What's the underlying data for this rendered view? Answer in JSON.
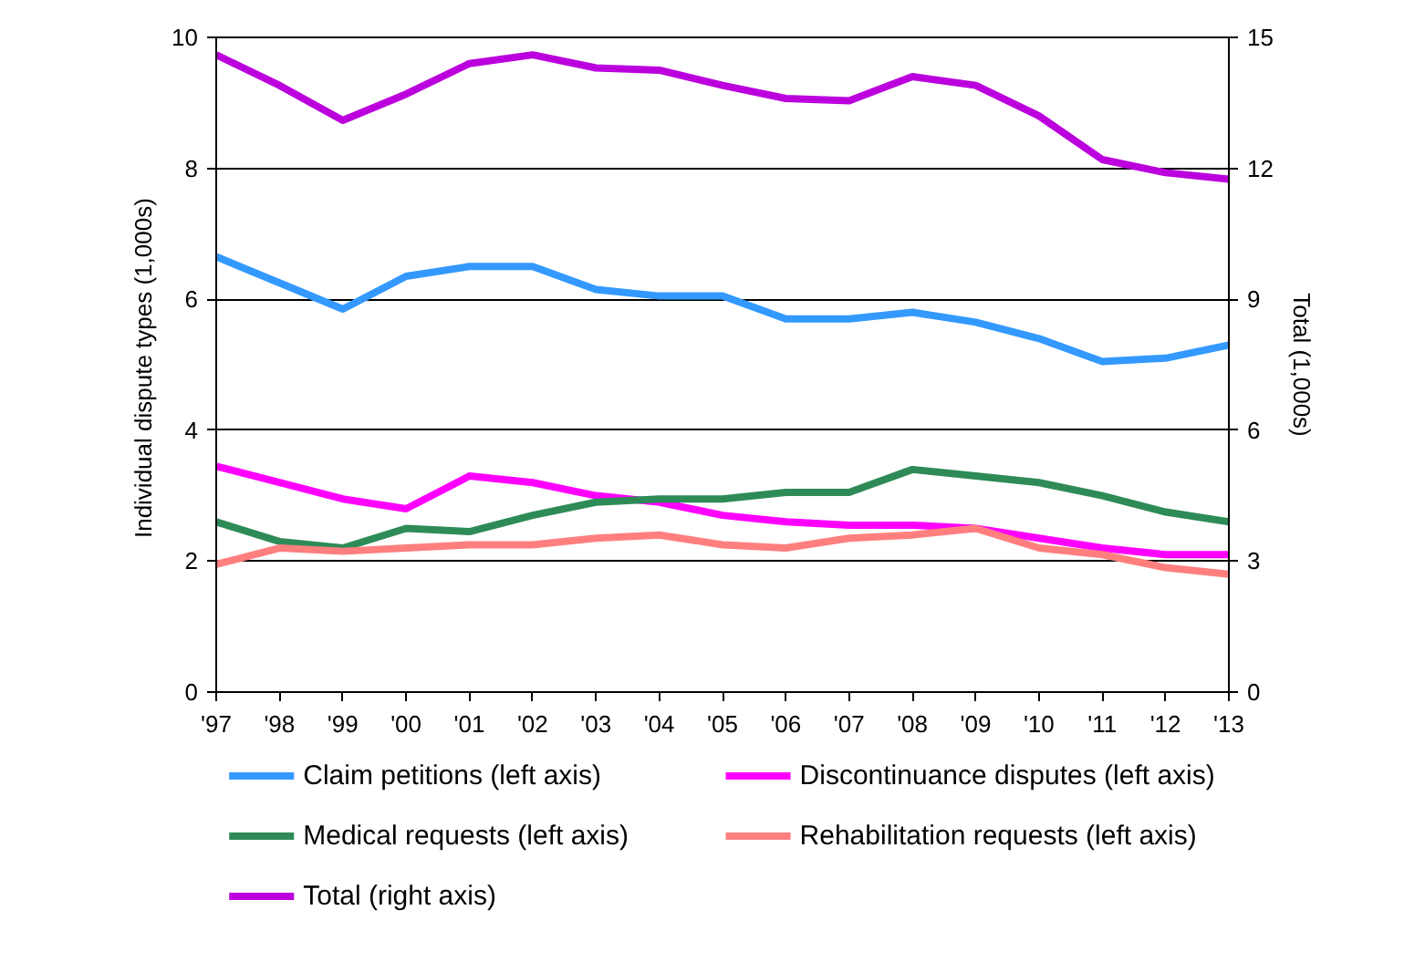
{
  "chart_data": {
    "type": "line",
    "categories": [
      "'97",
      "'98",
      "'99",
      "'00",
      "'01",
      "'02",
      "'03",
      "'04",
      "'05",
      "'06",
      "'07",
      "'08",
      "'09",
      "'10",
      "'11",
      "'12",
      "'13"
    ],
    "ylabel": "Individual  dispute types (1,000s)",
    "y2label": "Total (1,000s)",
    "ylim": [
      0,
      10
    ],
    "yticks": [
      0,
      2,
      4,
      6,
      8,
      10
    ],
    "y2lim": [
      0,
      15
    ],
    "y2ticks": [
      0,
      3,
      6,
      9,
      12,
      15
    ],
    "grid": "y",
    "legend": "bottom",
    "line_style": "solid",
    "marker": "none",
    "series": [
      {
        "name": "Claim petitions (left axis)",
        "color": "#3399ff",
        "values": [
          6.65,
          6.25,
          5.85,
          6.35,
          6.5,
          6.5,
          6.15,
          6.05,
          6.05,
          5.7,
          5.7,
          5.8,
          5.65,
          5.4,
          5.05,
          5.1,
          5.3
        ]
      },
      {
        "name": "Discontinuance disputes (left axis)",
        "color": "#ff00ff",
        "values": [
          3.45,
          3.2,
          2.95,
          2.8,
          3.3,
          3.2,
          3.0,
          2.9,
          2.7,
          2.6,
          2.55,
          2.55,
          2.5,
          2.35,
          2.2,
          2.1,
          2.1
        ]
      },
      {
        "name": "Medical requests (left axis)",
        "color": "#2e8b57",
        "values": [
          2.6,
          2.3,
          2.2,
          2.5,
          2.45,
          2.7,
          2.9,
          2.95,
          2.95,
          3.05,
          3.05,
          3.4,
          3.3,
          3.2,
          3.0,
          2.75,
          2.6
        ]
      },
      {
        "name": "Rehabilitation requests (left axis)",
        "color": "#ff7f7f",
        "values": [
          1.95,
          2.2,
          2.15,
          2.2,
          2.25,
          2.25,
          2.35,
          2.4,
          2.25,
          2.2,
          2.35,
          2.4,
          2.5,
          2.2,
          2.1,
          1.9,
          1.8
        ]
      },
      {
        "name": "Total (right axis)",
        "color": "#bb00dd",
        "axis": "y2",
        "values": [
          14.6,
          13.9,
          13.1,
          13.7,
          14.4,
          14.6,
          14.3,
          14.25,
          13.9,
          13.6,
          13.55,
          14.1,
          13.9,
          13.2,
          12.2,
          11.9,
          11.75
        ]
      }
    ]
  }
}
